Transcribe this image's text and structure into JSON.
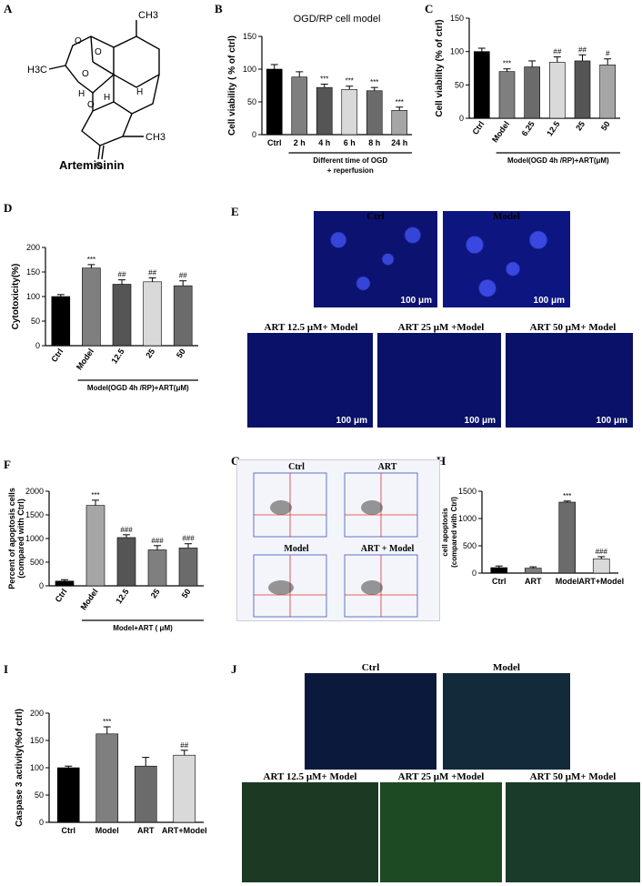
{
  "panels": {
    "A": {
      "letter": "A",
      "compound": "Artemisinin",
      "atoms": {
        "h3c": "H3C",
        "ch3_top": "CH3",
        "ch3_right": "CH3",
        "h1": "H",
        "h2": "H",
        "h3": "H",
        "o1": "O",
        "o2": "O",
        "o3": "O",
        "o4": "O",
        "o5": "O"
      }
    },
    "B": {
      "letter": "B"
    },
    "C": {
      "letter": "C"
    },
    "D": {
      "letter": "D"
    },
    "E": {
      "letter": "E",
      "images": [
        "Ctrl",
        "Model",
        "ART 12.5 μM+ Model",
        "ART 25 μM +Model",
        "ART 50 μM+ Model"
      ],
      "scale": "100 μm"
    },
    "F": {
      "letter": "F"
    },
    "G": {
      "letter": "G",
      "plots": [
        "Ctrl",
        "ART",
        "Model",
        "ART + Model"
      ]
    },
    "H": {
      "letter": "H"
    },
    "I": {
      "letter": "I"
    },
    "J": {
      "letter": "J",
      "images": [
        "Ctrl",
        "Model",
        "ART 12.5 μM+ Model",
        "ART 25 μM +Model",
        "ART 50 μM+ Model"
      ]
    }
  },
  "chart_data": [
    {
      "id": "B",
      "type": "bar",
      "title": "OGD/RP cell model",
      "ylabel": "Cell viability ( % of ctrl)",
      "xlabel": "",
      "group_label": "Different time of OGD + reperfusion",
      "categories": [
        "Ctrl",
        "2 h",
        "4 h",
        "6 h",
        "8 h",
        "24 h"
      ],
      "values": [
        100,
        88,
        72,
        69,
        67,
        37
      ],
      "errors": [
        7,
        8,
        5,
        5,
        5,
        5
      ],
      "annotations": [
        "",
        "",
        "***",
        "***",
        "***",
        "***"
      ],
      "colors": [
        "#000000",
        "#7f7f7f",
        "#555555",
        "#d9d9d9",
        "#6b6b6b",
        "#a6a6a6"
      ],
      "ylim": [
        0,
        150
      ],
      "yticks": [
        0,
        50,
        100,
        150
      ]
    },
    {
      "id": "C",
      "type": "bar",
      "title": "",
      "ylabel": "Cell viability (% of ctrl)",
      "xlabel": "",
      "group_label": "Model(OGD 4h /RP)+ART(μM)",
      "categories": [
        "Ctrl",
        "Model",
        "6.25",
        "12.5",
        "25",
        "50"
      ],
      "values": [
        100,
        70,
        77,
        84,
        86,
        80
      ],
      "errors": [
        5,
        4,
        9,
        8,
        9,
        9
      ],
      "annotations": [
        "",
        "***",
        "",
        "##",
        "##",
        "#"
      ],
      "colors": [
        "#000000",
        "#7f7f7f",
        "#6b6b6b",
        "#d9d9d9",
        "#555555",
        "#a6a6a6"
      ],
      "ylim": [
        0,
        150
      ],
      "yticks": [
        0,
        50,
        100,
        150
      ]
    },
    {
      "id": "D",
      "type": "bar",
      "title": "",
      "ylabel": "Cytotoxicity(%)",
      "xlabel": "",
      "group_label": "Model(OGD 4h /RP)+ART(μM)",
      "categories": [
        "Ctrl",
        "Model",
        "12.5",
        "25",
        "50"
      ],
      "values": [
        100,
        158,
        125,
        130,
        122
      ],
      "errors": [
        4,
        7,
        9,
        8,
        10
      ],
      "annotations": [
        "",
        "***",
        "##",
        "##",
        "##"
      ],
      "colors": [
        "#000000",
        "#7f7f7f",
        "#555555",
        "#d9d9d9",
        "#6b6b6b"
      ],
      "ylim": [
        0,
        200
      ],
      "yticks": [
        0,
        50,
        100,
        150,
        200
      ]
    },
    {
      "id": "F",
      "type": "bar",
      "title": "",
      "ylabel": "Percent of apoptosis cells (compared with Ctrl)",
      "xlabel": "",
      "group_label": "Model+ART ( μM)",
      "categories": [
        "Ctrl",
        "Model",
        "12.5",
        "25",
        "50"
      ],
      "values": [
        100,
        1700,
        1020,
        760,
        800
      ],
      "errors": [
        30,
        110,
        60,
        90,
        90
      ],
      "annotations": [
        "",
        "***",
        "###",
        "###",
        "###"
      ],
      "colors": [
        "#000000",
        "#a6a6a6",
        "#555555",
        "#7f7f7f",
        "#6b6b6b"
      ],
      "ylim": [
        0,
        2000
      ],
      "yticks": [
        0,
        500,
        1000,
        1500,
        2000
      ]
    },
    {
      "id": "H",
      "type": "bar",
      "title": "",
      "ylabel": "cell apoptosis (compared with Ctrl)",
      "xlabel": "",
      "group_label": "",
      "categories": [
        "Ctrl",
        "ART",
        "Model",
        "ART+Model"
      ],
      "values": [
        100,
        90,
        1300,
        260
      ],
      "errors": [
        30,
        25,
        20,
        40
      ],
      "annotations": [
        "",
        "",
        "***",
        "###"
      ],
      "colors": [
        "#000000",
        "#7f7f7f",
        "#6b6b6b",
        "#d9d9d9"
      ],
      "ylim": [
        0,
        1500
      ],
      "yticks": [
        0,
        500,
        1000,
        1500
      ]
    },
    {
      "id": "I",
      "type": "bar",
      "title": "",
      "ylabel": "Caspase 3 activity(%of ctrl)",
      "xlabel": "",
      "group_label": "",
      "categories": [
        "Ctrl",
        "Model",
        "ART",
        "ART+Model"
      ],
      "values": [
        100,
        162,
        103,
        123
      ],
      "errors": [
        3,
        13,
        16,
        9
      ],
      "annotations": [
        "",
        "***",
        "",
        "##"
      ],
      "colors": [
        "#000000",
        "#7f7f7f",
        "#6b6b6b",
        "#d9d9d9"
      ],
      "ylim": [
        0,
        200
      ],
      "yticks": [
        0,
        50,
        100,
        150,
        200
      ]
    }
  ]
}
